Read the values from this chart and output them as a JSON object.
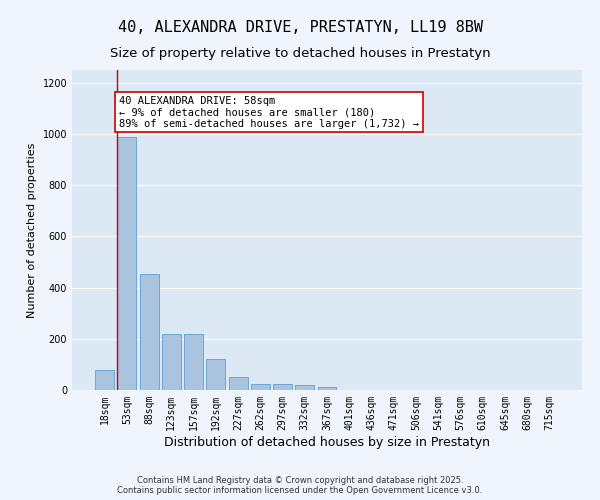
{
  "title": "40, ALEXANDRA DRIVE, PRESTATYN, LL19 8BW",
  "subtitle": "Size of property relative to detached houses in Prestatyn",
  "xlabel": "Distribution of detached houses by size in Prestatyn",
  "ylabel": "Number of detached properties",
  "footer_line1": "Contains HM Land Registry data © Crown copyright and database right 2025.",
  "footer_line2": "Contains public sector information licensed under the Open Government Licence v3.0.",
  "categories": [
    "18sqm",
    "53sqm",
    "88sqm",
    "123sqm",
    "157sqm",
    "192sqm",
    "227sqm",
    "262sqm",
    "297sqm",
    "332sqm",
    "367sqm",
    "401sqm",
    "436sqm",
    "471sqm",
    "506sqm",
    "541sqm",
    "576sqm",
    "610sqm",
    "645sqm",
    "680sqm",
    "715sqm"
  ],
  "values": [
    80,
    990,
    455,
    220,
    220,
    120,
    50,
    25,
    23,
    20,
    12,
    0,
    0,
    0,
    0,
    0,
    0,
    0,
    0,
    0,
    0
  ],
  "bar_color": "#aac4e0",
  "bar_edge_color": "#5a9fd4",
  "background_color": "#dde8f5",
  "fig_background_color": "#f0f4fc",
  "grid_color": "#ffffff",
  "vline_color": "#cc0000",
  "vline_x_index": 1,
  "annotation_text": "40 ALEXANDRA DRIVE: 58sqm\n← 9% of detached houses are smaller (180)\n89% of semi-detached houses are larger (1,732) →",
  "annotation_box_edgecolor": "#cc0000",
  "annotation_box_facecolor": "#ffffff",
  "ylim": [
    0,
    1250
  ],
  "yticks": [
    0,
    200,
    400,
    600,
    800,
    1000,
    1200
  ],
  "title_fontsize": 11,
  "subtitle_fontsize": 9.5,
  "xlabel_fontsize": 9,
  "ylabel_fontsize": 8,
  "tick_fontsize": 7,
  "annotation_fontsize": 7.5,
  "footer_fontsize": 6
}
